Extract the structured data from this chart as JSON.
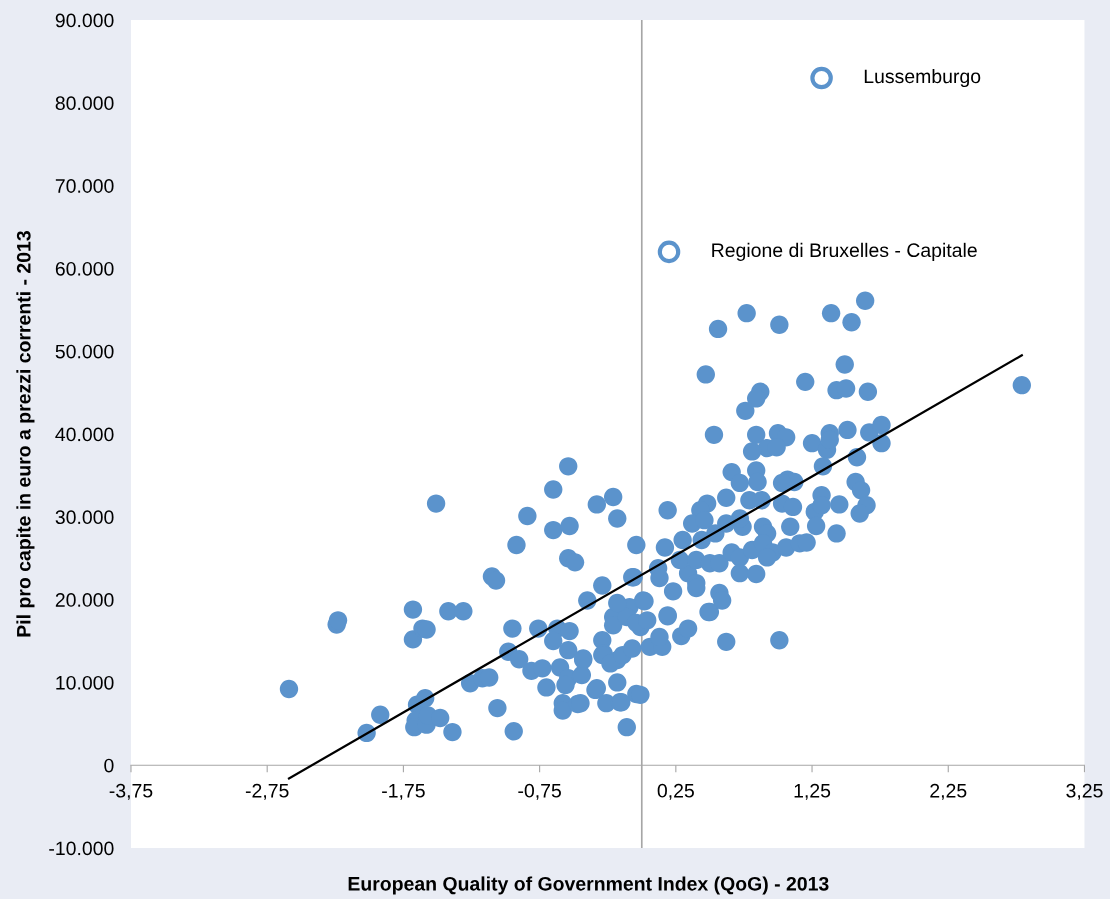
{
  "chart_data": {
    "type": "scatter",
    "xlabel": "European Quality of Government Index (QoG) - 2013",
    "ylabel": "Pil pro capite in euro a prezzi correnti - 2013",
    "xlim": [
      -3.75,
      3.25
    ],
    "xticks": [
      {
        "value": -3.75,
        "label": "-3,75"
      },
      {
        "value": -2.75,
        "label": "-2,75"
      },
      {
        "value": -1.75,
        "label": "-1,75"
      },
      {
        "value": -0.75,
        "label": "-0,75"
      },
      {
        "value": 0.25,
        "label": "0,25"
      },
      {
        "value": 1.25,
        "label": "1,25"
      },
      {
        "value": 2.25,
        "label": "2,25"
      },
      {
        "value": 3.25,
        "label": "3,25"
      }
    ],
    "ylim": [
      -10000,
      90000
    ],
    "yticks": [
      {
        "value": -10000,
        "label": "-10.000"
      },
      0,
      {
        "value": 10000,
        "label": "10.000"
      },
      {
        "value": 20000,
        "label": "20.000"
      },
      {
        "value": 30000,
        "label": "30.000"
      },
      {
        "value": 40000,
        "label": "40.000"
      },
      {
        "value": 50000,
        "label": "50.000"
      },
      {
        "value": 60000,
        "label": "60.000"
      },
      {
        "value": 70000,
        "label": "70.000"
      },
      {
        "value": 80000,
        "label": "80.000"
      },
      {
        "value": 90000,
        "label": "90.000"
      }
    ],
    "grid": false,
    "legend": false,
    "marker": "circle",
    "ref_lines": [
      {
        "axis": "x",
        "value": 0,
        "color": "#a6a6a6"
      }
    ],
    "annotations": [
      {
        "text": "Lussemburgo",
        "x": 1.32,
        "y": 83000
      },
      {
        "text": "Regione di Bruxelles - Capitale",
        "x": 0.2,
        "y": 62000
      }
    ],
    "series": [
      {
        "type": "scatter",
        "color": "#5b93cc",
        "x": [
          -2.59,
          -2.24,
          -2.23,
          -2.02,
          -1.92,
          -1.68,
          -1.68,
          -1.61,
          -1.58,
          -1.51,
          -1.65,
          -1.59,
          -1.66,
          -1.67,
          -1.58,
          -1.57,
          -1.48,
          -1.39,
          -1.42,
          -1.31,
          -1.26,
          -1.17,
          -1.12,
          -1.1,
          -1.07,
          -1.06,
          -0.94,
          -0.54,
          -0.65,
          -0.33,
          -0.21,
          -0.18,
          -0.84,
          -0.65,
          -0.53,
          -0.92,
          -0.04,
          -0.54,
          -0.49,
          -0.29,
          -0.4,
          -0.06,
          -0.95,
          -0.76,
          -0.62,
          -0.53,
          -0.65,
          -0.29,
          -0.98,
          -0.9,
          -0.81,
          -0.73,
          -0.6,
          -0.54,
          -0.7,
          -0.43,
          -0.44,
          -0.34,
          -0.28,
          -0.18,
          -0.26,
          -0.18,
          -0.16,
          -0.04,
          -0.58,
          -0.58,
          -0.47,
          -0.11,
          -0.09,
          0.01,
          -0.21,
          -0.21,
          -0.11,
          -0.01,
          -0.56,
          -0.33,
          -0.45,
          -0.15,
          -0.01,
          0.23,
          0.13,
          -0.07,
          -0.18,
          -0.54,
          -0.43,
          -0.29,
          -0.23,
          -0.14,
          -0.07,
          -0.04,
          0.06,
          0.15,
          0.13,
          0.04,
          0.19,
          0.29,
          0.5,
          0.57,
          0.62,
          0.34,
          0.4,
          1.64,
          1.39,
          1.54,
          0.77,
          0.56,
          1.01,
          0.47,
          1.49,
          1.2,
          1.43,
          1.5,
          1.66,
          2.79,
          0.87,
          0.84,
          0.76,
          0.53,
          0.84,
          1.0,
          1.06,
          0.92,
          0.81,
          0.99,
          1.25,
          1.38,
          1.51,
          1.36,
          1.38,
          1.67,
          1.76,
          1.76,
          1.58,
          1.33,
          0.66,
          0.84,
          0.85,
          0.72,
          1.07,
          1.12,
          1.03,
          1.57,
          1.61,
          1.32,
          0.62,
          0.79,
          0.88,
          1.03,
          1.11,
          1.27,
          1.32,
          1.45,
          1.65,
          1.6,
          1.28,
          1.43,
          1.09,
          0.89,
          0.92,
          0.74,
          0.48,
          0.43,
          0.19,
          0.37,
          0.46,
          0.62,
          0.72,
          0.54,
          0.44,
          0.3,
          0.17,
          0.28,
          0.4,
          0.5,
          0.57,
          0.66,
          0.72,
          0.81,
          0.89,
          0.96,
          0.92,
          1.06,
          1.16,
          1.21,
          0.72,
          0.84,
          0.4,
          0.59,
          0.02,
          0.12,
          0.19,
          0.49,
          0.34,
          1.01
        ],
        "values": [
          9200,
          17000,
          17500,
          3900,
          6100,
          18800,
          15200,
          16500,
          16400,
          31600,
          7300,
          8100,
          5400,
          4600,
          4900,
          6000,
          5700,
          4000,
          18600,
          18600,
          9900,
          10500,
          10600,
          22800,
          22300,
          6900,
          4100,
          36100,
          33300,
          31500,
          32400,
          29800,
          30100,
          28400,
          28900,
          26600,
          26600,
          25000,
          24500,
          21700,
          19900,
          22700,
          16500,
          16500,
          16500,
          16200,
          15000,
          15100,
          13700,
          12800,
          11400,
          11700,
          11800,
          10500,
          9400,
          12700,
          10900,
          9100,
          13500,
          12700,
          7500,
          10000,
          7600,
          8600,
          7500,
          6600,
          7400,
          4600,
          19100,
          19900,
          17900,
          16900,
          17900,
          16700,
          9700,
          9300,
          7500,
          7600,
          8500,
          21000,
          22600,
          22700,
          19600,
          13900,
          12900,
          13300,
          12300,
          13300,
          14100,
          17200,
          14300,
          14300,
          15500,
          17500,
          18000,
          15600,
          18500,
          20800,
          14900,
          23200,
          22000,
          56100,
          54600,
          53500,
          54600,
          52700,
          53200,
          47200,
          48400,
          46300,
          45300,
          45500,
          45100,
          45900,
          45100,
          44300,
          42800,
          39900,
          39900,
          40100,
          39600,
          38300,
          37900,
          38400,
          38900,
          40100,
          40500,
          38100,
          39300,
          40200,
          41100,
          38900,
          37200,
          36100,
          35400,
          35600,
          34200,
          34100,
          34500,
          34200,
          34100,
          34200,
          33200,
          32600,
          32300,
          32000,
          32000,
          31600,
          31200,
          30600,
          31400,
          31500,
          31400,
          30400,
          28900,
          28000,
          28800,
          28800,
          28000,
          28800,
          31600,
          30800,
          30800,
          29200,
          29600,
          29200,
          29800,
          28000,
          27200,
          27200,
          26300,
          24800,
          24800,
          24400,
          24400,
          25700,
          25100,
          26000,
          26800,
          25700,
          25100,
          26300,
          26800,
          26900,
          23200,
          23100,
          21400,
          19900,
          19800,
          23800,
          18100,
          18500,
          16500,
          15100
        ]
      },
      {
        "type": "line",
        "color": "#000000",
        "line_style": "solid",
        "marker": "none",
        "x": [
          -2.59,
          2.79
        ],
        "values": [
          -1600,
          49500
        ]
      }
    ]
  }
}
